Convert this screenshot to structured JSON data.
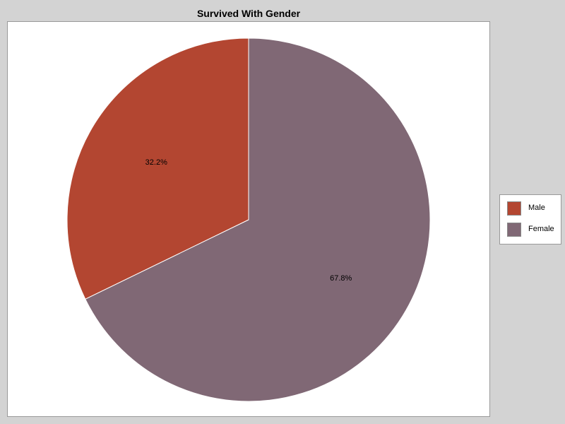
{
  "chart_data": {
    "type": "pie",
    "title": "Survived With Gender",
    "categories": [
      "Male",
      "Female"
    ],
    "values": [
      32.2,
      67.8
    ],
    "labels": [
      "32.2%",
      "67.8%"
    ],
    "colors": [
      "#b34631",
      "#806875"
    ],
    "start_angle_deg": 90,
    "direction": "counterclockwise",
    "legend": "right"
  }
}
